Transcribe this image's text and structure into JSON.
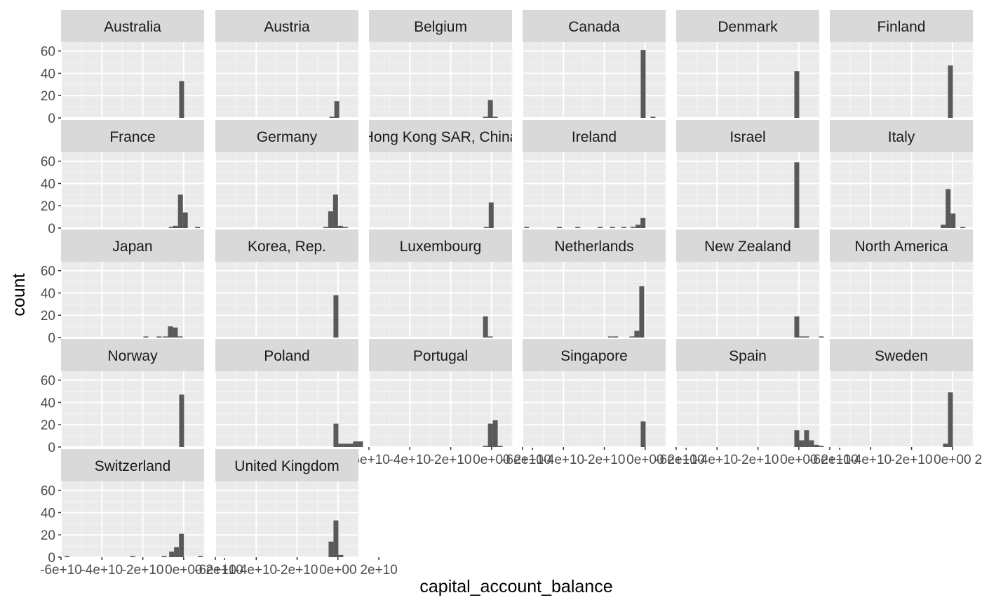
{
  "chart_data": {
    "type": "bar",
    "facet_layout": "wrap",
    "xlabel": "capital_account_balance",
    "ylabel": "count",
    "xlim": [
      -60000000000.0,
      10000000000.0
    ],
    "ylim": [
      0,
      68
    ],
    "x_ticks": [
      -60000000000.0,
      -40000000000.0,
      -20000000000.0,
      0,
      20000000000.0
    ],
    "x_tick_labels": [
      "-6e+10",
      "-4e+10",
      "-2e+10",
      "0e+00",
      "2e+10"
    ],
    "y_ticks": [
      0,
      20,
      40,
      60
    ],
    "y_tick_labels": [
      "0",
      "20",
      "40",
      "60"
    ],
    "bin_width": 2400000000.0,
    "grid": true,
    "colors": {
      "panel_bg": "#ebebeb",
      "grid_major": "#ffffff",
      "grid_minor": "#f5f5f5",
      "bar": "#595959",
      "strip_bg": "#d9d9d9",
      "tick_text": "#4d4d4d"
    },
    "facets": [
      {
        "name": "Australia",
        "bins": [
          [
            -1000000000.0,
            33
          ]
        ]
      },
      {
        "name": "Austria",
        "bins": [
          [
            -3000000000.0,
            1
          ],
          [
            -600000000.0,
            15
          ]
        ]
      },
      {
        "name": "Belgium",
        "bins": [
          [
            -3000000000.0,
            1
          ],
          [
            -600000000.0,
            16
          ],
          [
            1800000000.0,
            1
          ]
        ]
      },
      {
        "name": "Canada",
        "bins": [
          [
            -1000000000.0,
            61
          ],
          [
            3800000000.0,
            1
          ]
        ]
      },
      {
        "name": "Denmark",
        "bins": [
          [
            -1000000000.0,
            42
          ]
        ]
      },
      {
        "name": "Finland",
        "bins": [
          [
            -1000000000.0,
            47
          ]
        ]
      },
      {
        "name": "France",
        "bins": [
          [
            -6000000000.0,
            1
          ],
          [
            -4000000000.0,
            2
          ],
          [
            -1600000000.0,
            30
          ],
          [
            800000000.0,
            14
          ],
          [
            6800000000.0,
            1
          ]
        ]
      },
      {
        "name": "Germany",
        "bins": [
          [
            -6000000000.0,
            1
          ],
          [
            -3600000000.0,
            15
          ],
          [
            -1200000000.0,
            30
          ],
          [
            1200000000.0,
            2
          ],
          [
            3600000000.0,
            1
          ]
        ]
      },
      {
        "name": "Hong Kong SAR, China",
        "bins": [
          [
            -2600000000.0,
            1
          ],
          [
            -200000000.0,
            23
          ]
        ]
      },
      {
        "name": "Ireland",
        "bins": [
          [
            -58000000000.0,
            1
          ],
          [
            -42000000000.0,
            1
          ],
          [
            -33000000000.0,
            1
          ],
          [
            -22000000000.0,
            1
          ],
          [
            -16000000000.0,
            1
          ],
          [
            -10500000000.0,
            1
          ],
          [
            -6000000000.0,
            1
          ],
          [
            -3500000000.0,
            3
          ],
          [
            -1100000000.0,
            9
          ]
        ]
      },
      {
        "name": "Israel",
        "bins": [
          [
            -1000000000.0,
            59
          ]
        ]
      },
      {
        "name": "Italy",
        "bins": [
          [
            -4500000000.0,
            3
          ],
          [
            -2100000000.0,
            35
          ],
          [
            300000000.0,
            13
          ],
          [
            5100000000.0,
            1
          ]
        ]
      },
      {
        "name": "Japan",
        "bins": [
          [
            -18500000000.0,
            1
          ],
          [
            -12000000000.0,
            1
          ],
          [
            -9000000000.0,
            1
          ],
          [
            -6500000000.0,
            10
          ],
          [
            -4100000000.0,
            9
          ],
          [
            -1700000000.0,
            1
          ]
        ]
      },
      {
        "name": "Korea, Rep.",
        "bins": [
          [
            -1000000000.0,
            38
          ]
        ]
      },
      {
        "name": "Luxembourg",
        "bins": [
          [
            -3000000000.0,
            19
          ],
          [
            -600000000.0,
            1
          ]
        ]
      },
      {
        "name": "Netherlands",
        "bins": [
          [
            -17000000000.0,
            1
          ],
          [
            -14500000000.0,
            1
          ],
          [
            -6500000000.0,
            1
          ],
          [
            -4100000000.0,
            6
          ],
          [
            -1700000000.0,
            46
          ]
        ]
      },
      {
        "name": "New Zealand",
        "bins": [
          [
            -1000000000.0,
            19
          ],
          [
            1400000000.0,
            1
          ],
          [
            3800000000.0,
            1
          ],
          [
            11000000000.0,
            1
          ]
        ]
      },
      {
        "name": "North America",
        "bins": []
      },
      {
        "name": "Norway",
        "bins": [
          [
            -1000000000.0,
            47
          ]
        ]
      },
      {
        "name": "Poland",
        "bins": [
          [
            -1000000000.0,
            21
          ],
          [
            1400000000.0,
            3
          ],
          [
            3800000000.0,
            3
          ],
          [
            6200000000.0,
            3
          ],
          [
            8600000000.0,
            5
          ],
          [
            11000000000.0,
            5
          ]
        ]
      },
      {
        "name": "Portugal",
        "bins": [
          [
            -3000000000.0,
            1
          ],
          [
            -600000000.0,
            21
          ],
          [
            1800000000.0,
            24
          ],
          [
            4200000000.0,
            1
          ]
        ]
      },
      {
        "name": "Singapore",
        "bins": [
          [
            -1000000000.0,
            23
          ]
        ]
      },
      {
        "name": "Spain",
        "bins": [
          [
            -1000000000.0,
            15
          ],
          [
            1400000000.0,
            6
          ],
          [
            3800000000.0,
            15
          ],
          [
            6200000000.0,
            6
          ],
          [
            8600000000.0,
            2
          ],
          [
            11000000000.0,
            1
          ]
        ]
      },
      {
        "name": "Sweden",
        "bins": [
          [
            -3400000000.0,
            3
          ],
          [
            -1000000000.0,
            49
          ]
        ]
      },
      {
        "name": "Switzerland",
        "bins": [
          [
            -57000000000.0,
            1
          ],
          [
            -25000000000.0,
            1
          ],
          [
            -9500000000.0,
            1
          ],
          [
            -5900000000.0,
            5
          ],
          [
            -3500000000.0,
            9
          ],
          [
            -1100000000.0,
            21
          ],
          [
            8200000000.0,
            1
          ]
        ]
      },
      {
        "name": "United Kingdom",
        "bins": [
          [
            -3400000000.0,
            14
          ],
          [
            -1000000000.0,
            33
          ],
          [
            1400000000.0,
            2
          ]
        ]
      }
    ]
  }
}
